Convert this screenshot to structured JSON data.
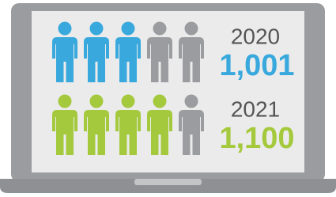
{
  "rows": [
    {
      "year": "2020",
      "count": "1,001",
      "filled": 3,
      "total": 5,
      "color": "#39a9dd"
    },
    {
      "year": "2021",
      "count": "1,100",
      "filled": 4,
      "total": 5,
      "color": "#a4c93c"
    }
  ],
  "empty_color": "#9a9c9f"
}
